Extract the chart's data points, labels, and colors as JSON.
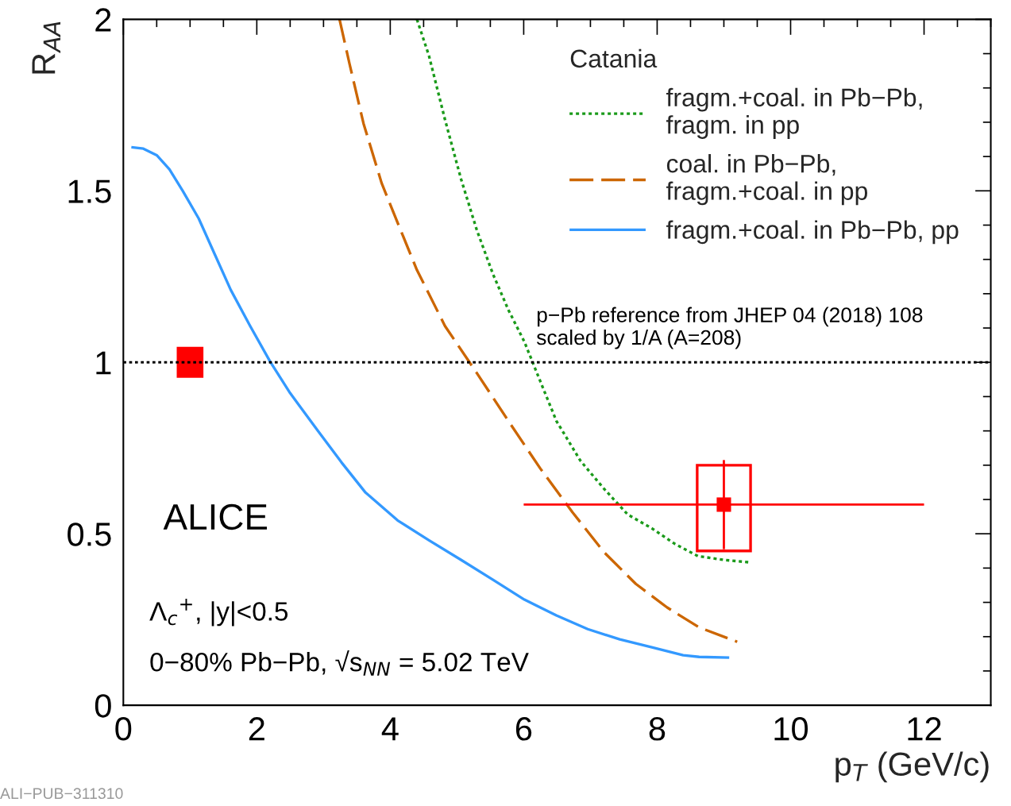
{
  "chart_data": {
    "type": "line",
    "xlabel": "p$_{T}$ (GeV/c)",
    "ylabel": "R$_{AA}$",
    "legend_title": "Catania",
    "legend": "top right",
    "grid": false,
    "xlim": [
      0,
      13
    ],
    "ylim": [
      0,
      2
    ],
    "xticks": [
      0,
      2,
      4,
      6,
      8,
      10,
      12
    ],
    "yticks": [
      0,
      0.5,
      1,
      1.5,
      2
    ],
    "series": [
      {
        "name": "fragm.+coal. in Pb−Pb,\nfragm. in pp",
        "color": "#1a9a1a",
        "line_style": "dotted",
        "x": [
          4.4,
          4.58,
          4.82,
          5.06,
          5.3,
          5.54,
          5.77,
          6.01,
          6.25,
          6.49,
          6.85,
          7.2,
          7.56,
          7.92,
          8.27,
          8.61,
          8.99,
          9.37
        ],
        "values": [
          2.0,
          1.894,
          1.708,
          1.535,
          1.384,
          1.257,
          1.153,
          1.06,
          0.944,
          0.829,
          0.713,
          0.632,
          0.556,
          0.516,
          0.47,
          0.435,
          0.424,
          0.417
        ]
      },
      {
        "name": "coal. in Pb−Pb,\nfragm.+coal. in pp",
        "color": "#cc6600",
        "line_style": "dashed",
        "x": [
          3.24,
          3.39,
          3.6,
          3.87,
          4.11,
          4.4,
          4.82,
          5.3,
          5.77,
          6.25,
          6.73,
          7.2,
          7.68,
          8.15,
          8.63,
          9.2
        ],
        "values": [
          2.0,
          1.87,
          1.696,
          1.523,
          1.407,
          1.269,
          1.106,
          0.968,
          0.829,
          0.69,
          0.563,
          0.447,
          0.354,
          0.285,
          0.227,
          0.185
        ]
      },
      {
        "name": "fragm.+coal. in Pb−Pb, pp",
        "color": "#3399ff",
        "line_style": "solid",
        "x": [
          0.12,
          0.3,
          0.5,
          0.69,
          0.89,
          1.13,
          1.37,
          1.61,
          1.9,
          2.2,
          2.5,
          2.92,
          3.27,
          3.63,
          4.11,
          4.58,
          5.06,
          5.54,
          6.01,
          6.49,
          6.96,
          7.44,
          7.92,
          8.39,
          8.63,
          9.08
        ],
        "values": [
          1.627,
          1.623,
          1.604,
          1.563,
          1.5,
          1.419,
          1.315,
          1.211,
          1.106,
          1.002,
          0.91,
          0.799,
          0.708,
          0.62,
          0.539,
          0.481,
          0.424,
          0.366,
          0.308,
          0.262,
          0.222,
          0.192,
          0.169,
          0.146,
          0.141,
          0.139
        ]
      },
      {
        "type": "scatter",
        "marker": "square",
        "color": "#ff0000",
        "x": [
          9
        ],
        "values": [
          0.585
        ],
        "errors": [
          0.13
        ],
        "xerrors": [
          3
        ]
      },
      {
        "type": "bar",
        "color": "#ff0000",
        "x": [
          1
        ],
        "base": [
          0.955
        ],
        "values": [
          0.09
        ]
      },
      {
        "type": "bar",
        "color": "#ff0000",
        "line_style": "solid",
        "x": [
          9
        ],
        "base": [
          0.45
        ],
        "values": [
          0.25
        ]
      }
    ],
    "ref_lines": [
      {
        "axis": "y",
        "value": 1,
        "color": "#000000",
        "line_style": "dotted"
      }
    ],
    "annotations": [
      "p−Pb reference from JHEP 04 (2018) 108\nscaled by 1/A (A=208)",
      "ALICE",
      "Λ$_{c}$$^{+}$, |y|<0.5",
      "0−80% Pb−Pb, √s$_{NN}$ = 5.02 TeV",
      "ALI−PUB−311310"
    ]
  }
}
